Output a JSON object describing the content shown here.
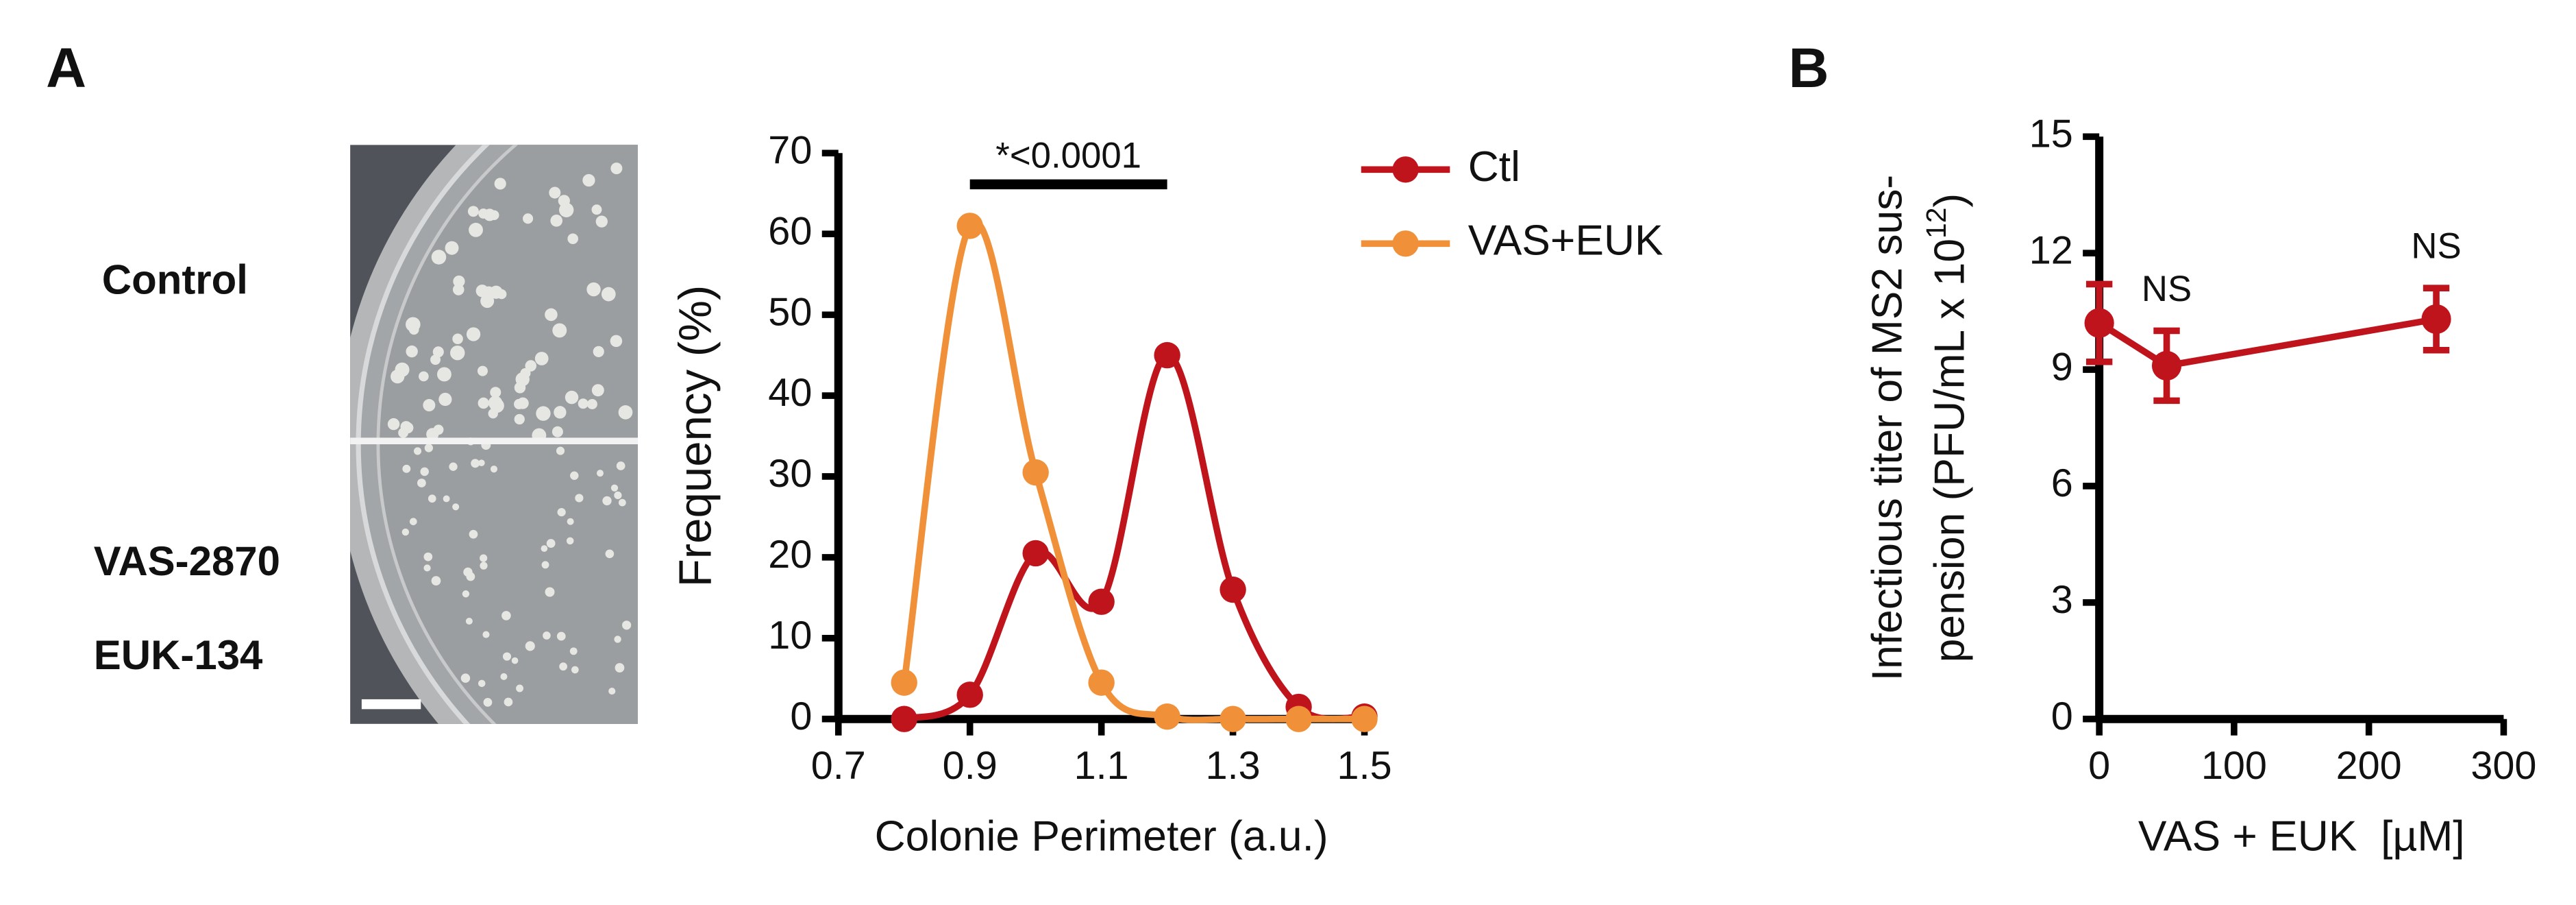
{
  "photo_labels": [
    "Control",
    "VAS-2870",
    "EUK-134"
  ],
  "chart_data": [
    {
      "type": "line",
      "panel_label": "A",
      "x": [
        0.8,
        0.9,
        1.0,
        1.1,
        1.2,
        1.3,
        1.4,
        1.5
      ],
      "series": [
        {
          "name": "Ctl",
          "color": "#c0141c",
          "values": [
            0,
            3,
            20.5,
            14.5,
            45,
            16,
            1.5,
            0.3
          ]
        },
        {
          "name": "VAS+EUK",
          "color": "#f0913a",
          "values": [
            4.5,
            61,
            30.5,
            4.5,
            0.3,
            0,
            0,
            0
          ]
        }
      ],
      "xlim": [
        0.7,
        1.5
      ],
      "xticks": [
        0.7,
        0.9,
        1.1,
        1.3,
        1.5
      ],
      "ylim": [
        0,
        70
      ],
      "yticks": [
        0,
        10,
        20,
        30,
        40,
        50,
        60,
        70
      ],
      "x_label": "Colonie Perimeter (a.u.)",
      "y_label": "Frequency (%)",
      "significance": {
        "text": "*<0.0001",
        "from": 0.9,
        "to": 1.2
      },
      "legend": "right"
    },
    {
      "type": "errorbar-line",
      "panel_label": "B",
      "x": [
        0,
        50,
        250
      ],
      "series": [
        {
          "color": "#c0141c",
          "values": [
            10.2,
            9.1,
            10.3
          ],
          "errors": [
            1.0,
            0.9,
            0.8
          ]
        }
      ],
      "xlim": [
        0,
        300
      ],
      "xticks": [
        0,
        100,
        200,
        300
      ],
      "ylim": [
        0,
        15
      ],
      "yticks": [
        0,
        3,
        6,
        9,
        12,
        15
      ],
      "x_label": "VAS + EUK  [µM]",
      "y_label": {
        "line1": "Infectious titer of MS2 sus-",
        "line2": "pension (PFU/mL x 10",
        "sup": "12",
        "end": ")"
      },
      "annotations": [
        {
          "text": "NS",
          "x": 50
        },
        {
          "text": "NS",
          "x": 250
        }
      ]
    }
  ]
}
